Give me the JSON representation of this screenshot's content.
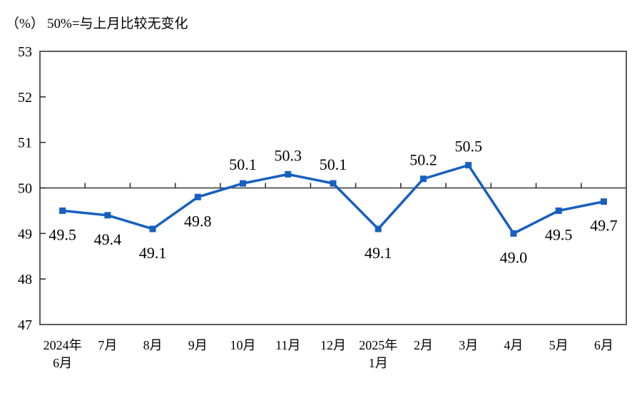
{
  "chart_data": {
    "type": "line",
    "unit_label": "（%）",
    "note": "50%=与上月比较无变化",
    "categories": [
      "2024年\n6月",
      "7月",
      "8月",
      "9月",
      "10月",
      "11月",
      "12月",
      "2025年\n1月",
      "2月",
      "3月",
      "4月",
      "5月",
      "6月"
    ],
    "values": [
      49.5,
      49.4,
      49.1,
      49.8,
      50.1,
      50.3,
      50.1,
      49.1,
      50.2,
      50.5,
      49.0,
      49.5,
      49.7
    ],
    "data_labels": [
      "49.5",
      "49.4",
      "49.1",
      "49.8",
      "50.1",
      "50.3",
      "50.1",
      "49.1",
      "50.2",
      "50.5",
      "49.0",
      "49.5",
      "49.7"
    ],
    "ylim": [
      47,
      53
    ],
    "yticks": [
      47,
      48,
      49,
      50,
      51,
      52,
      53
    ],
    "baseline_value": 50,
    "grid": false,
    "legend_position": "none",
    "marker": "square",
    "colors": {
      "line": "#175FC1",
      "axis": "#333333",
      "text": "#000000",
      "background": "#FFFFFF"
    }
  }
}
